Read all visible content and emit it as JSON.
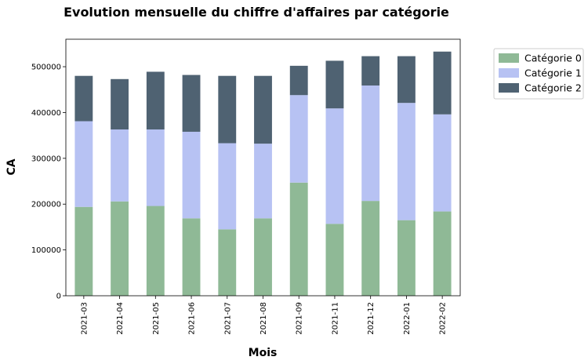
{
  "chart_data": {
    "type": "bar",
    "stacked": true,
    "title": "Evolution mensuelle du chiffre d'affaires par catégorie",
    "xlabel": "Mois",
    "ylabel": "CA",
    "categories": [
      "2021-03",
      "2021-04",
      "2021-05",
      "2021-06",
      "2021-07",
      "2021-08",
      "2021-09",
      "2021-11",
      "2021-12",
      "2022-01",
      "2022-02"
    ],
    "series": [
      {
        "name": "Catégorie 0",
        "color": "#8fb996",
        "values": [
          194000,
          206000,
          196000,
          169000,
          145000,
          169000,
          247000,
          157000,
          207000,
          165000,
          184000
        ]
      },
      {
        "name": "Catégorie 1",
        "color": "#b7c2f3",
        "values": [
          187000,
          157000,
          167000,
          189000,
          188000,
          163000,
          191000,
          252000,
          252000,
          256000,
          212000
        ]
      },
      {
        "name": "Catégorie 2",
        "color": "#4f6272",
        "values": [
          99000,
          110000,
          126000,
          124000,
          147000,
          148000,
          64000,
          104000,
          64000,
          102000,
          137000
        ]
      }
    ],
    "ylim": [
      0,
      560000
    ],
    "yticks": [
      0,
      100000,
      200000,
      300000,
      400000,
      500000
    ],
    "legend": "outside-top-right",
    "grid": false
  }
}
